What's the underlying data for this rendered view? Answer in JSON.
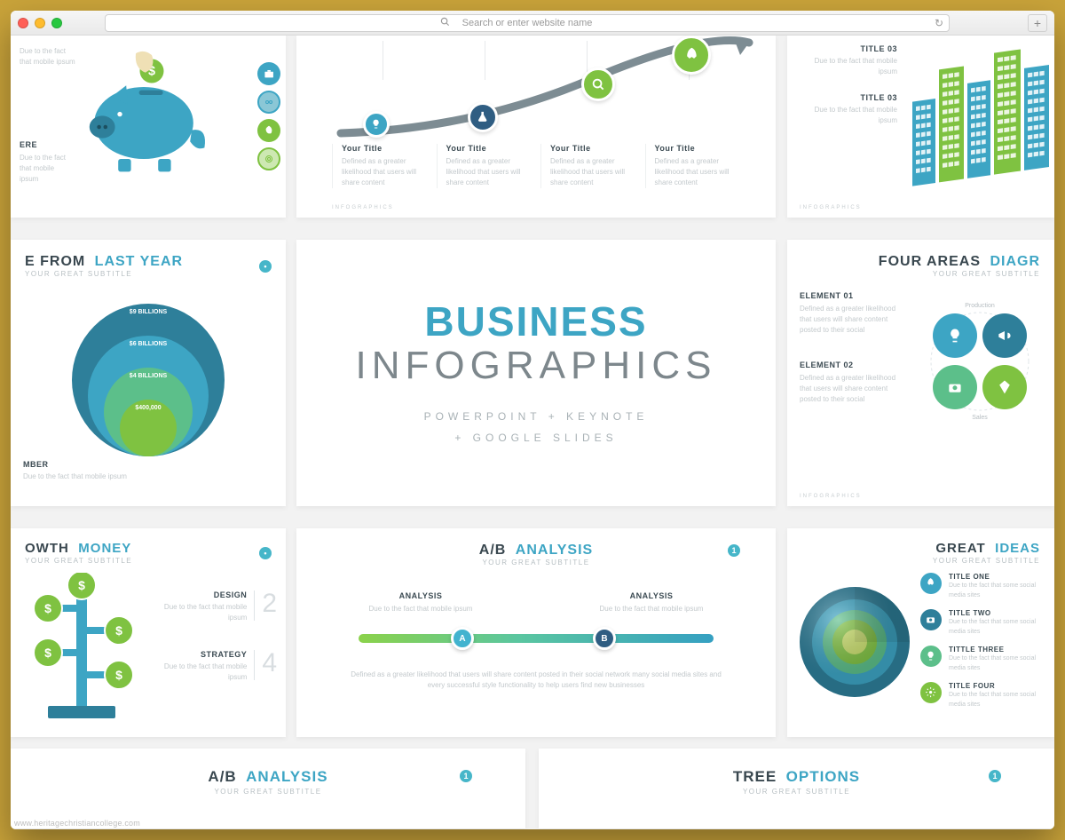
{
  "browser": {
    "search_placeholder": "Search or enter website name",
    "traffic_colors": [
      "#ff5f57",
      "#febc2e",
      "#28c840"
    ]
  },
  "watermark": "www.heritagechristiancollege.com",
  "palette": {
    "teal": "#3da5c4",
    "teal_dark": "#2e7f9a",
    "green": "#7fc241",
    "green_mid": "#5cbf8a",
    "navy": "#2f5d82",
    "slate": "#39474f",
    "grey_track": "#7d8c93"
  },
  "pig": {
    "title_here": "ERE",
    "desc": "Due to the fact that mobile ipsum",
    "icons": [
      "briefcase",
      "mask",
      "leaf",
      "target"
    ]
  },
  "curve": {
    "nodes": [
      {
        "color": "#3da5c4",
        "icon": "bulb"
      },
      {
        "color": "#2f5d82",
        "icon": "flask"
      },
      {
        "color": "#7fc241",
        "icon": "search"
      },
      {
        "color": "#7fc241",
        "icon": "rocket"
      }
    ],
    "cols": [
      {
        "title": "Your Title",
        "desc": "Defined as a greater likelihood that users will share content"
      },
      {
        "title": "Your Title",
        "desc": "Defined as a greater likelihood that users will share content"
      },
      {
        "title": "Your Title",
        "desc": "Defined as a greater likelihood that users will share content"
      },
      {
        "title": "Your Title",
        "desc": "Defined as a greater likelihood that users will share content"
      }
    ],
    "footer": "INFOGRAPHICS"
  },
  "city": {
    "items": [
      {
        "title": "TITLE 03",
        "desc": "Due to the fact that mobile ipsum"
      },
      {
        "title": "TITLE 03",
        "desc": "Due to the fact that mobile ipsum"
      }
    ],
    "building_colors": [
      "#3da5c4",
      "#7fc241",
      "#3da5c4",
      "#7fc241",
      "#3da5c4"
    ],
    "footer": "INFOGRAPHICS"
  },
  "circles": {
    "title_pre": "E FROM",
    "title_em": "LAST YEAR",
    "subtitle": "YOUR GREAT SUBTITLE",
    "rings": [
      {
        "label": "$9 BILLIONS",
        "color": "#2e7f9a",
        "r": 86
      },
      {
        "label": "$6 BILLIONS",
        "color": "#3da5c4",
        "r": 68
      },
      {
        "label": "$4 BILLIONS",
        "color": "#5cbf8a",
        "r": 50
      },
      {
        "label": "$400,000",
        "color": "#7fc241",
        "r": 32
      }
    ],
    "mber": {
      "title": "MBER",
      "desc": "Due to the fact that mobile ipsum"
    }
  },
  "hero": {
    "line1": "BUSINESS",
    "line2": "INFOGRAPHICS",
    "sub": "POWERPOINT + KEYNOTE\n+ GOOGLE SLIDES"
  },
  "four": {
    "title_pre": "FOUR AREAS",
    "title_em": "DIAGR",
    "subtitle": "YOUR GREAT SUBTITLE",
    "center_labels": [
      "Production",
      "Sales"
    ],
    "elements": [
      {
        "title": "ELEMENT 01",
        "desc": "Defined as a greater likelihood that users will share content posted to their social"
      },
      {
        "title": "ELEMENT 02",
        "desc": "Defined as a greater likelihood that users will share content posted to their social"
      }
    ],
    "bubbles": [
      {
        "color": "#3da5c4",
        "icon": "bulb"
      },
      {
        "color": "#2e7f9a",
        "icon": "megaphone"
      },
      {
        "color": "#5cbf8a",
        "icon": "camera"
      },
      {
        "color": "#7fc241",
        "icon": "diamond"
      }
    ],
    "footer": "INFOGRAPHICS"
  },
  "growth": {
    "title_pre": "OWTH",
    "title_em": "MONEY",
    "subtitle": "YOUR GREAT SUBTITLE",
    "rows": [
      {
        "label": "DESIGN",
        "num": "2",
        "desc": "Due to the fact that mobile ipsum"
      },
      {
        "label": "STRATEGY",
        "num": "4",
        "desc": "Due to the fact that mobile ipsum"
      }
    ],
    "coin_color": "#7fc241",
    "trunk_color": "#3da5c4"
  },
  "ab": {
    "title_pre": "A/B",
    "title_em": "ANALYSIS",
    "subtitle": "YOUR GREAT SUBTITLE",
    "num": "1",
    "left": {
      "title": "ANALYSIS",
      "desc": "Due to the fact that mobile ipsum"
    },
    "right": {
      "title": "ANALYSIS",
      "desc": "Due to the fact that mobile ipsum"
    },
    "knobA": "A",
    "knobB": "B",
    "footer": "Defined as a greater likelihood that users will share content posted in their social network many social media sites and every successful style functionality to help users find new businesses"
  },
  "ideas": {
    "title_pre": "GREAT",
    "title_em": "IDEAS",
    "subtitle": "YOUR GREAT SUBTITLE",
    "items": [
      {
        "color": "#3da5c4",
        "icon": "rocket",
        "title": "TITLE ONE",
        "desc": "Due to the fact that some social media sites"
      },
      {
        "color": "#2e7f9a",
        "icon": "camera",
        "title": "TITLE TWO",
        "desc": "Due to the fact that some social media sites"
      },
      {
        "color": "#5cbf8a",
        "icon": "bulb",
        "title": "TITTLE THREE",
        "desc": "Due to the fact that some social media sites"
      },
      {
        "color": "#7fc241",
        "icon": "gear",
        "title": "TITLE FOUR",
        "desc": "Due to the fact that some social media sites"
      }
    ],
    "sphere_colors": [
      "#2e7f9a",
      "#3da5c4",
      "#5cbf8a",
      "#7fc241",
      "#c9df6a"
    ]
  },
  "ab2": {
    "title_pre": "A/B",
    "title_em": "ANALYSIS",
    "subtitle": "YOUR GREAT SUBTITLE",
    "num": "1"
  },
  "tree": {
    "title_pre": "TREE",
    "title_em": "OPTIONS",
    "subtitle": "YOUR GREAT SUBTITLE",
    "num": "1"
  }
}
